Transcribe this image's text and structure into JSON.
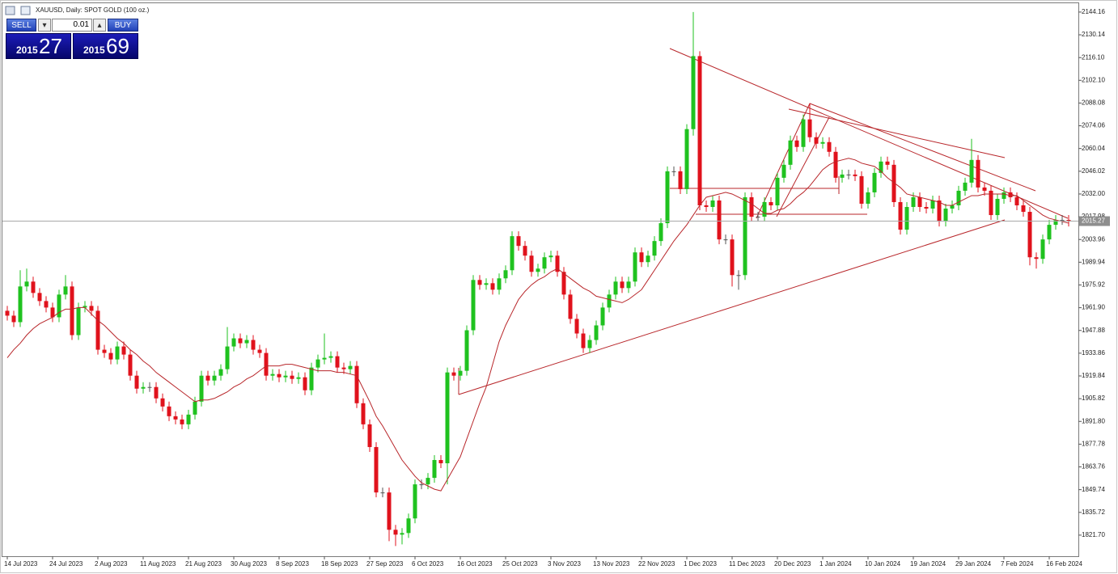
{
  "chart_data": {
    "type": "candlestick",
    "title": "XAUUSD, Daily:  SPOT GOLD (100 oz.)",
    "categories": [
      "14 Jul 2023",
      null,
      null,
      null,
      null,
      null,
      null,
      "24 Jul 2023",
      null,
      null,
      null,
      null,
      null,
      null,
      "2 Aug 2023",
      null,
      null,
      null,
      null,
      null,
      null,
      "11 Aug 2023",
      null,
      null,
      null,
      null,
      null,
      null,
      "21 Aug 2023",
      null,
      null,
      null,
      null,
      null,
      null,
      "30 Aug 2023",
      null,
      null,
      null,
      null,
      null,
      null,
      "8 Sep 2023",
      null,
      null,
      null,
      null,
      null,
      null,
      "18 Sep 2023",
      null,
      null,
      null,
      null,
      null,
      null,
      "27 Sep 2023",
      null,
      null,
      null,
      null,
      null,
      null,
      "6 Oct 2023",
      null,
      null,
      null,
      null,
      null,
      null,
      "16 Oct 2023",
      null,
      null,
      null,
      null,
      null,
      null,
      "25 Oct 2023",
      null,
      null,
      null,
      null,
      null,
      null,
      "3 Nov 2023",
      null,
      null,
      null,
      null,
      null,
      null,
      "13 Nov 2023",
      null,
      null,
      null,
      null,
      null,
      null,
      "22 Nov 2023",
      null,
      null,
      null,
      null,
      null,
      null,
      "1 Dec 2023",
      null,
      null,
      null,
      null,
      null,
      null,
      "11 Dec 2023",
      null,
      null,
      null,
      null,
      null,
      null,
      "20 Dec 2023",
      null,
      null,
      null,
      null,
      null,
      null,
      "1 Jan 2024",
      null,
      null,
      null,
      null,
      null,
      null,
      "10 Jan 2024",
      null,
      null,
      null,
      null,
      null,
      null,
      "19 Jan 2024",
      null,
      null,
      null,
      null,
      null,
      null,
      "29 Jan 2024",
      null,
      null,
      null,
      null,
      null,
      null,
      "7 Feb 2024",
      null,
      null,
      null,
      null,
      null,
      null,
      "16 Feb 2024",
      null,
      null,
      null
    ],
    "open": [
      1960,
      1957,
      1953,
      1975,
      1978,
      1971,
      1966,
      1962,
      1956,
      1970,
      1975,
      1945,
      1962,
      1963,
      1960,
      1936,
      1934,
      1930,
      1938,
      1933,
      1920,
      1912,
      1913,
      1913,
      1906,
      1901,
      1895,
      1893,
      1890,
      1896,
      1904,
      1920,
      1917,
      1920,
      1924,
      1938,
      1943,
      1940,
      1942,
      1936,
      1934,
      1920,
      1921,
      1919,
      1920,
      1918,
      1919,
      1911,
      1925,
      1930,
      1931,
      1932,
      1925,
      1924,
      1926,
      1903,
      1890,
      1876,
      1848,
      1848,
      1825,
      1822,
      1823,
      1832,
      1853,
      1853,
      1857,
      1868,
      1866,
      1922,
      1920,
      1923,
      1948,
      1979,
      1976,
      1977,
      1973,
      1980,
      1985,
      2006,
      2000,
      1994,
      1984,
      1986,
      1993,
      1994,
      1984,
      1970,
      1955,
      1946,
      1937,
      1942,
      1951,
      1962,
      1970,
      1978,
      1974,
      1978,
      1996,
      1990,
      1994,
      2003,
      2014,
      2046,
      2046,
      2035,
      2072,
      2117,
      2025,
      2024,
      2028,
      2004,
      2004,
      1982,
      1982,
      2030,
      2018,
      2018,
      2027,
      2025,
      2042,
      2050,
      2065,
      2061,
      2078,
      2067,
      2063,
      2064,
      2058,
      2042,
      2044,
      2044,
      2043,
      2026,
      2033,
      2045,
      2052,
      2050,
      2027,
      2010,
      2024,
      2030,
      2024,
      2023,
      2028,
      2015,
      2023,
      2025,
      2034,
      2039,
      2053,
      2036,
      2034,
      2019,
      2029,
      2033,
      2030,
      2025,
      2021,
      1993,
      1992,
      2004,
      2013,
      2016,
      2016
    ],
    "high": [
      1963,
      1960,
      1985,
      1986,
      1981,
      1974,
      1969,
      1965,
      1973,
      1982,
      1978,
      1965,
      1966,
      1966,
      1963,
      1939,
      1937,
      1941,
      1941,
      1936,
      1923,
      1916,
      1916,
      1916,
      1909,
      1904,
      1898,
      1896,
      1899,
      1907,
      1923,
      1923,
      1923,
      1927,
      1950,
      1946,
      1946,
      1945,
      1945,
      1939,
      1937,
      1924,
      1924,
      1923,
      1923,
      1922,
      1922,
      1928,
      1933,
      1946,
      1935,
      1935,
      1928,
      1929,
      1929,
      1906,
      1893,
      1879,
      1851,
      1851,
      1828,
      1826,
      1835,
      1856,
      1856,
      1860,
      1871,
      1871,
      1925,
      1925,
      1926,
      1951,
      1982,
      1982,
      1980,
      1980,
      1983,
      1988,
      2009,
      2009,
      2003,
      1997,
      1989,
      1996,
      1997,
      1997,
      1987,
      1973,
      1958,
      1949,
      1945,
      1954,
      1965,
      1973,
      1981,
      1981,
      1981,
      1999,
      1999,
      1997,
      2006,
      2017,
      2049,
      2049,
      2049,
      2075,
      2144.16,
      2120,
      2028,
      2031,
      2031,
      2007,
      2007,
      1985,
      2033,
      2033,
      2021,
      2030,
      2030,
      2045,
      2053,
      2068,
      2068,
      2081,
      2088,
      2070,
      2067,
      2067,
      2061,
      2047,
      2047,
      2047,
      2046,
      2036,
      2048,
      2055,
      2055,
      2053,
      2030,
      2027,
      2033,
      2033,
      2027,
      2031,
      2031,
      2026,
      2028,
      2037,
      2042,
      2066,
      2056,
      2039,
      2037,
      2032,
      2036,
      2036,
      2033,
      2028,
      2024,
      1996,
      2007,
      2016,
      2019,
      2019,
      2019
    ],
    "low": [
      1954,
      1950,
      1950,
      1972,
      1968,
      1963,
      1959,
      1953,
      1953,
      1967,
      1942,
      1942,
      1959,
      1957,
      1933,
      1931,
      1927,
      1927,
      1930,
      1917,
      1909,
      1909,
      1910,
      1903,
      1898,
      1892,
      1890,
      1887,
      1887,
      1893,
      1901,
      1914,
      1914,
      1917,
      1921,
      1935,
      1937,
      1937,
      1933,
      1931,
      1917,
      1917,
      1916,
      1916,
      1915,
      1915,
      1908,
      1908,
      1922,
      1927,
      1928,
      1922,
      1921,
      1921,
      1900,
      1887,
      1873,
      1845,
      1845,
      1818,
      1815,
      1816,
      1820,
      1829,
      1850,
      1850,
      1854,
      1863,
      1853,
      1917,
      1917,
      1920,
      1945,
      1973,
      1973,
      1970,
      1970,
      1977,
      1982,
      1997,
      1991,
      1981,
      1981,
      1983,
      1990,
      1981,
      1967,
      1952,
      1943,
      1934,
      1934,
      1939,
      1948,
      1959,
      1967,
      1971,
      1971,
      1975,
      1987,
      1987,
      1991,
      2000,
      2011,
      2043,
      2032,
      2032,
      2068,
      2022,
      2021,
      2021,
      2001,
      2001,
      1975,
      1973,
      1979,
      2015,
      2015,
      2015,
      2022,
      2022,
      2039,
      2047,
      2058,
      2058,
      2064,
      2060,
      2060,
      2055,
      2039,
      2039,
      2041,
      2040,
      2023,
      2023,
      2030,
      2042,
      2047,
      2024,
      2007,
      2007,
      2021,
      2021,
      2020,
      2020,
      2012,
      2012,
      2020,
      2022,
      2031,
      2036,
      2033,
      2031,
      2016,
      2016,
      2026,
      2027,
      2022,
      2018,
      1988,
      1986,
      1989,
      2001,
      2010,
      2013,
      2012
    ],
    "close": [
      1957,
      1953,
      1975,
      1978,
      1971,
      1966,
      1962,
      1956,
      1970,
      1975,
      1945,
      1962,
      1963,
      1960,
      1936,
      1934,
      1930,
      1938,
      1933,
      1920,
      1912,
      1913,
      1913,
      1906,
      1901,
      1895,
      1893,
      1890,
      1896,
      1904,
      1920,
      1917,
      1920,
      1924,
      1938,
      1943,
      1940,
      1942,
      1936,
      1934,
      1920,
      1921,
      1919,
      1920,
      1918,
      1919,
      1911,
      1925,
      1930,
      1931,
      1932,
      1925,
      1924,
      1926,
      1903,
      1890,
      1876,
      1848,
      1848,
      1825,
      1822,
      1823,
      1832,
      1853,
      1853,
      1857,
      1868,
      1866,
      1922,
      1920,
      1923,
      1948,
      1979,
      1976,
      1977,
      1973,
      1980,
      1985,
      2006,
      2000,
      1994,
      1984,
      1986,
      1993,
      1994,
      1984,
      1970,
      1955,
      1946,
      1937,
      1942,
      1951,
      1962,
      1970,
      1978,
      1974,
      1978,
      1996,
      1990,
      1994,
      2003,
      2014,
      2046,
      2046,
      2035,
      2072,
      2117,
      2025,
      2024,
      2028,
      2004,
      2004,
      1982,
      1982,
      2030,
      2018,
      2018,
      2027,
      2025,
      2042,
      2050,
      2065,
      2061,
      2078,
      2067,
      2063,
      2064,
      2058,
      2042,
      2044,
      2044,
      2043,
      2026,
      2033,
      2045,
      2052,
      2050,
      2027,
      2010,
      2024,
      2030,
      2024,
      2023,
      2028,
      2015,
      2023,
      2025,
      2034,
      2039,
      2053,
      2036,
      2034,
      2019,
      2029,
      2033,
      2030,
      2025,
      2021,
      1993,
      1992,
      2004,
      2013,
      2016,
      2016,
      2015.27
    ],
    "ma": [
      1931,
      1936,
      1940,
      1945,
      1949,
      1952,
      1954,
      1956,
      1959,
      1961,
      1961,
      1962,
      1962,
      1958,
      1954,
      1951,
      1947,
      1943,
      1940,
      1936,
      1933,
      1929,
      1926,
      1922,
      1919,
      1916,
      1913,
      1910,
      1907,
      1904,
      1905,
      1905,
      1906,
      1908,
      1910,
      1913,
      1915,
      1918,
      1920,
      1923,
      1926,
      1926,
      1926,
      1927,
      1927,
      1926,
      1925,
      1924,
      1923,
      1923,
      1923,
      1922,
      1922,
      1921,
      1920,
      1912,
      1904,
      1895,
      1889,
      1882,
      1875,
      1868,
      1863,
      1858,
      1854,
      1852,
      1850,
      1849,
      1856,
      1863,
      1870,
      1881,
      1892,
      1903,
      1913,
      1927,
      1941,
      1951,
      1959,
      1967,
      1972,
      1976,
      1979,
      1981,
      1984,
      1986,
      1983,
      1980,
      1977,
      1974,
      1972,
      1969,
      1968,
      1967,
      1966,
      1965,
      1967,
      1970,
      1973,
      1979,
      1985,
      1991,
      1997,
      2003,
      2008,
      2013,
      2019,
      2025,
      2030,
      2031,
      2032,
      2033,
      2032,
      2030,
      2028,
      2026,
      2023,
      2020,
      2020,
      2022,
      2023,
      2026,
      2030,
      2033,
      2037,
      2042,
      2047,
      2050,
      2052,
      2053,
      2054,
      2053,
      2051,
      2050,
      2049,
      2046,
      2042,
      2039,
      2036,
      2032,
      2031,
      2030,
      2029,
      2028,
      2027,
      2025,
      2025,
      2027,
      2029,
      2031,
      2031,
      2032,
      2032,
      2032,
      2032,
      2031,
      2031,
      2028,
      2025,
      2022,
      2019,
      2017,
      2016,
      2015,
      2014
    ],
    "up_color": "#1fc21f",
    "down_color": "#e0121c",
    "ma_color": "#b8262a",
    "price_line_color": "#a8a8a8",
    "current_price": 2015.27,
    "ylim": [
      1808.7,
      2149.1
    ],
    "yticks": [
      2144.16,
      2130.14,
      {
        "value": 2116.1,
        "label": "2116.10"
      },
      {
        "value": 2102.1,
        "label": "2102.10"
      },
      2088.08,
      2074.06,
      2060.04,
      2046.02,
      {
        "value": 2032,
        "label": "2032.00"
      },
      2017.98,
      2003.96,
      1989.94,
      1975.92,
      {
        "value": 1961.9,
        "label": "1961.90"
      },
      1947.88,
      1933.86,
      1919.84,
      1905.82,
      {
        "value": 1891.8,
        "label": "1891.80"
      },
      1877.78,
      1863.76,
      1849.74,
      1835.72,
      {
        "value": 1821.7,
        "label": "1821.70"
      }
    ],
    "grid": false
  },
  "trade_panel": {
    "sell": "SELL",
    "buy": "BUY",
    "lot": "0.01",
    "bid_big": "2015",
    "bid_pips": "27",
    "ask_big": "2015",
    "ask_pips": "69"
  }
}
